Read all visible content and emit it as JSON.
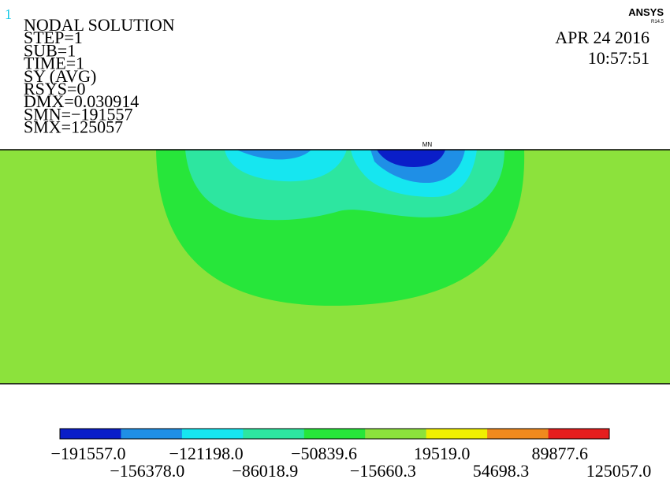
{
  "header": {
    "window_number": "1",
    "lines": [
      "NODAL SOLUTION",
      "STEP=1",
      "SUB=1",
      "TIME=1",
      "SY    (AVG)",
      "RSYS=0",
      "DMX=0.030914",
      "SMN=−191557",
      "SMX=125057"
    ]
  },
  "brand": {
    "logo": "ANSYS",
    "version": "R14.5",
    "date": "APR 24 2016",
    "time": "10:57:51"
  },
  "plot": {
    "min_marker": "MN"
  },
  "legend": {
    "colors": [
      "#0a1ec8",
      "#1f8fe6",
      "#16e6f0",
      "#2de6a0",
      "#27e63a",
      "#8ce23c",
      "#f0f000",
      "#f08a1e",
      "#e61e1e"
    ],
    "labels": [
      "−191557.0",
      "−156378.0",
      "−121198.0",
      "−86018.9",
      "−50839.6",
      "−15660.3",
      "19519.0",
      "54698.3",
      "89877.6",
      "125057.0"
    ]
  }
}
